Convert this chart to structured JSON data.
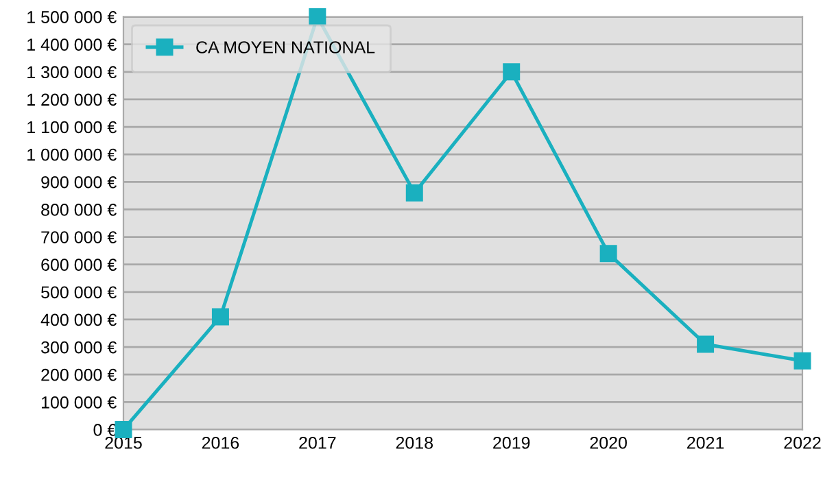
{
  "chart_data": {
    "type": "line",
    "categories": [
      "2015",
      "2016",
      "2017",
      "2018",
      "2019",
      "2020",
      "2021",
      "2022"
    ],
    "series": [
      {
        "name": "CA MOYEN NATIONAL",
        "color": "#1ab0bf",
        "values": [
          0,
          410000,
          1500000,
          860000,
          1300000,
          640000,
          310000,
          250000
        ]
      }
    ],
    "ylim": [
      0,
      1500000
    ],
    "yticks": [
      {
        "value": 0,
        "label": "0 €"
      },
      {
        "value": 100000,
        "label": "100 000 €"
      },
      {
        "value": 200000,
        "label": "200 000 €"
      },
      {
        "value": 300000,
        "label": "300 000 €"
      },
      {
        "value": 400000,
        "label": "400 000 €"
      },
      {
        "value": 500000,
        "label": "500 000 €"
      },
      {
        "value": 600000,
        "label": "600 000 €"
      },
      {
        "value": 700000,
        "label": "700 000 €"
      },
      {
        "value": 800000,
        "label": "800 000 €"
      },
      {
        "value": 900000,
        "label": "900 000 €"
      },
      {
        "value": 1000000,
        "label": "1 000 000 €"
      },
      {
        "value": 1100000,
        "label": "1 100 000 €"
      },
      {
        "value": 1200000,
        "label": "1 200 000 €"
      },
      {
        "value": 1300000,
        "label": "1 300 000 €"
      },
      {
        "value": 1400000,
        "label": "1 400 000 €"
      },
      {
        "value": 1500000,
        "label": "1 500 000 €"
      }
    ],
    "grid": "y",
    "legend": "top left",
    "marker": "square",
    "line_style": "solid"
  }
}
